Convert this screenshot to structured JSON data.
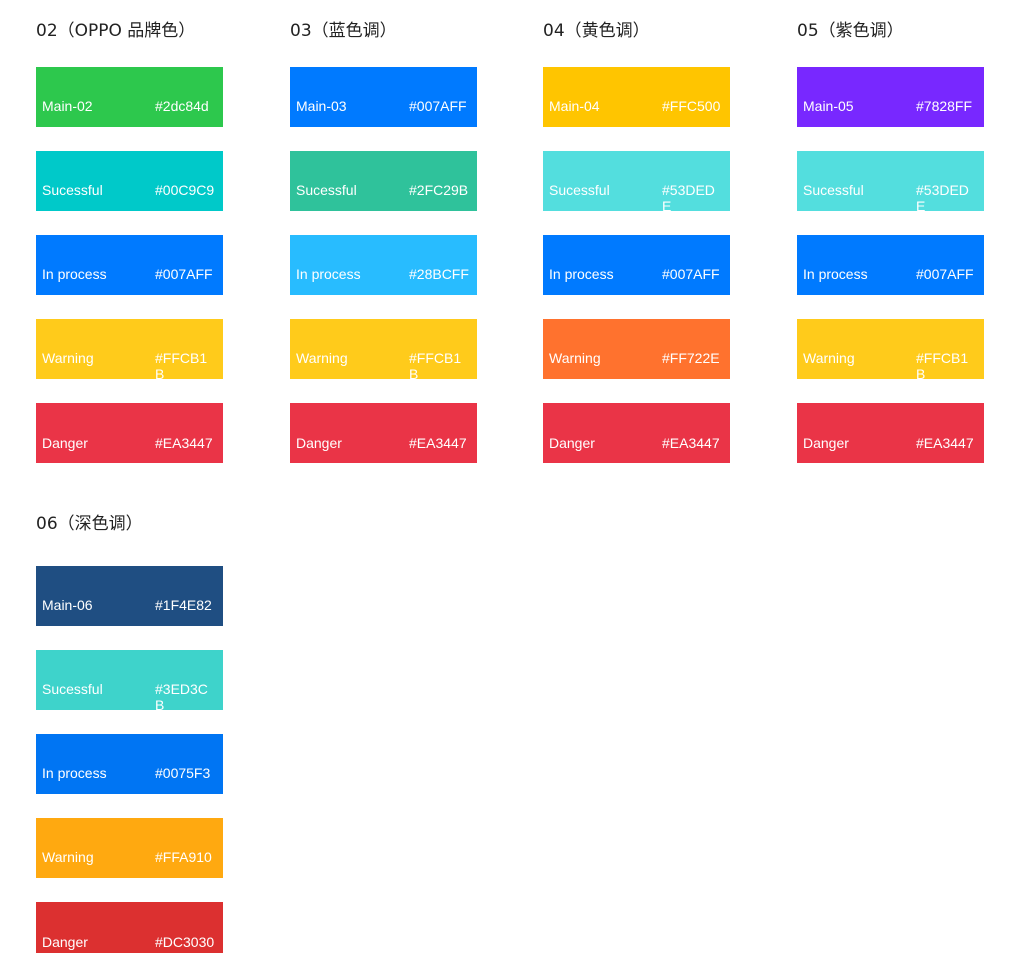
{
  "palettes": [
    {
      "title": "02（OPPO 品牌色）",
      "swatches": [
        {
          "label": "Main-02",
          "hex": "#2dc84d",
          "color": "#2dc84d"
        },
        {
          "label": "Sucessful",
          "hex": "#00C9C9",
          "color": "#00C9C9"
        },
        {
          "label": "In process",
          "hex": "#007AFF",
          "color": "#007AFF"
        },
        {
          "label": "Warning",
          "hex": "#FFCB1B",
          "color": "#FFCB1B"
        },
        {
          "label": "Danger",
          "hex": "#EA3447",
          "color": "#EA3447"
        }
      ]
    },
    {
      "title": "03（蓝色调）",
      "swatches": [
        {
          "label": "Main-03",
          "hex": "#007AFF",
          "color": "#007AFF"
        },
        {
          "label": "Sucessful",
          "hex": "#2FC29B",
          "color": "#2FC29B"
        },
        {
          "label": "In process",
          "hex": "#28BCFF",
          "color": "#28BCFF"
        },
        {
          "label": "Warning",
          "hex": "#FFCB1B",
          "color": "#FFCB1B"
        },
        {
          "label": "Danger",
          "hex": "#EA3447",
          "color": "#EA3447"
        }
      ]
    },
    {
      "title": "04（黄色调）",
      "swatches": [
        {
          "label": "Main-04",
          "hex": "#FFC500",
          "color": "#FFC500"
        },
        {
          "label": "Sucessful",
          "hex": "#53DEDE",
          "color": "#53DEDE"
        },
        {
          "label": "In process",
          "hex": "#007AFF",
          "color": "#007AFF"
        },
        {
          "label": "Warning",
          "hex": "#FF722E",
          "color": "#FF722E"
        },
        {
          "label": "Danger",
          "hex": "#EA3447",
          "color": "#EA3447"
        }
      ]
    },
    {
      "title": "05（紫色调）",
      "swatches": [
        {
          "label": "Main-05",
          "hex": "#7828FF",
          "color": "#7828FF"
        },
        {
          "label": "Sucessful",
          "hex": "#53DEDE",
          "color": "#53DEDE"
        },
        {
          "label": "In process",
          "hex": "#007AFF",
          "color": "#007AFF"
        },
        {
          "label": "Warning",
          "hex": "#FFCB1B",
          "color": "#FFCB1B"
        },
        {
          "label": "Danger",
          "hex": "#EA3447",
          "color": "#EA3447"
        }
      ]
    },
    {
      "title": "06（深色调）",
      "swatches": [
        {
          "label": "Main-06",
          "hex": "#1F4E82",
          "color": "#1F4E82"
        },
        {
          "label": "Sucessful",
          "hex": "#3ED3CB",
          "color": "#3ED3CB"
        },
        {
          "label": "In process",
          "hex": "#0075F3",
          "color": "#0075F3"
        },
        {
          "label": "Warning",
          "hex": "#FFA910",
          "color": "#FFA910"
        },
        {
          "label": "Danger",
          "hex": "#DC3030",
          "color": "#DC3030"
        }
      ]
    }
  ]
}
